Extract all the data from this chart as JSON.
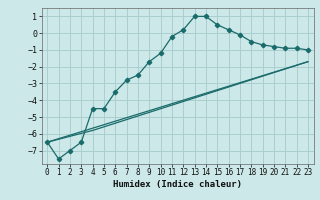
{
  "title": "",
  "xlabel": "Humidex (Indice chaleur)",
  "bg_color": "#cce8e8",
  "grid_color": "#aacece",
  "line_color": "#1a6b6b",
  "xlim": [
    -0.5,
    23.5
  ],
  "ylim": [
    -7.8,
    1.5
  ],
  "xticks": [
    0,
    1,
    2,
    3,
    4,
    5,
    6,
    7,
    8,
    9,
    10,
    11,
    12,
    13,
    14,
    15,
    16,
    17,
    18,
    19,
    20,
    21,
    22,
    23
  ],
  "yticks": [
    -7,
    -6,
    -5,
    -4,
    -3,
    -2,
    -1,
    0,
    1
  ],
  "line1_x": [
    0,
    1,
    2,
    3,
    4,
    5,
    6,
    7,
    8,
    9,
    10,
    11,
    12,
    13,
    14,
    15,
    16,
    17,
    18,
    19,
    20,
    21,
    22,
    23
  ],
  "line1_y": [
    -6.5,
    -7.5,
    -7.0,
    -6.5,
    -4.5,
    -4.5,
    -3.5,
    -2.8,
    -2.5,
    -1.7,
    -1.2,
    -0.2,
    0.2,
    1.0,
    1.0,
    0.5,
    0.2,
    -0.1,
    -0.5,
    -0.7,
    -0.8,
    -0.9,
    -0.9,
    -1.0
  ],
  "line2_x": [
    0,
    4,
    23
  ],
  "line2_y": [
    -6.5,
    -5.8,
    -1.7
  ],
  "line3_x": [
    0,
    23
  ],
  "line3_y": [
    -6.5,
    -1.7
  ]
}
